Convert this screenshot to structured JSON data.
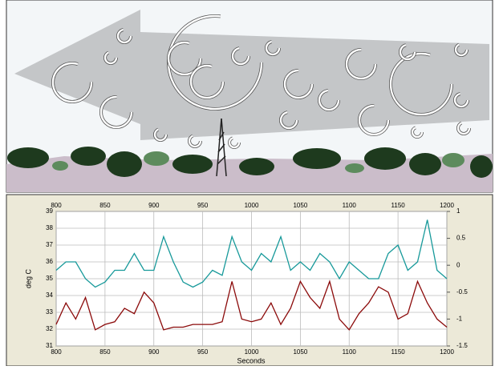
{
  "chart_data": {
    "type": "line",
    "x_label": "Seconds",
    "y_label": "deg C",
    "x": [
      800,
      810,
      820,
      830,
      840,
      850,
      860,
      870,
      880,
      890,
      900,
      910,
      920,
      930,
      940,
      950,
      960,
      970,
      980,
      990,
      1000,
      1010,
      1020,
      1030,
      1040,
      1050,
      1060,
      1070,
      1080,
      1090,
      1100,
      1110,
      1120,
      1130,
      1140,
      1150,
      1160,
      1170,
      1180,
      1190,
      1200
    ],
    "series": [
      {
        "color": "#17999a",
        "values": [
          35.5,
          36,
          36,
          35,
          34.5,
          34.8,
          35.5,
          35.5,
          36.5,
          35.5,
          35.5,
          37.5,
          36,
          34.8,
          34.5,
          34.8,
          35.5,
          35.2,
          37.5,
          36,
          35.5,
          36.5,
          36,
          37.5,
          35.5,
          36,
          35.5,
          36.5,
          36,
          35,
          36,
          35.5,
          35,
          35,
          36.5,
          37,
          35.5,
          36,
          38.5,
          35.5,
          35
        ]
      },
      {
        "color": "#8b0a0a",
        "axis": "y2",
        "values": [
          -1.1,
          -0.7,
          -1,
          -0.6,
          -1.2,
          -1.1,
          -1.05,
          -0.8,
          -0.9,
          -0.5,
          -0.7,
          -1.2,
          -1.15,
          -1.15,
          -1.1,
          -1.1,
          -1.1,
          -1.05,
          -0.3,
          -1,
          -1.05,
          -1,
          -0.7,
          -1.1,
          -0.8,
          -0.3,
          -0.6,
          -0.8,
          -0.3,
          -1,
          -1.2,
          -0.9,
          -0.7,
          -0.4,
          -0.5,
          -1,
          -0.9,
          -0.3,
          -0.7,
          -1,
          -1.15
        ]
      }
    ],
    "xlim": [
      800,
      1200
    ],
    "xticks": [
      800,
      850,
      900,
      950,
      1000,
      1050,
      1100,
      1150,
      1200
    ],
    "ylim": [
      31,
      39
    ],
    "yticks": [
      31,
      32,
      33,
      34,
      35,
      36,
      37,
      38,
      39
    ],
    "y2lim": [
      -1.5,
      1
    ],
    "y2ticks": [
      -1.5,
      -1,
      -0.5,
      0,
      0.5,
      1
    ],
    "grid": true
  }
}
